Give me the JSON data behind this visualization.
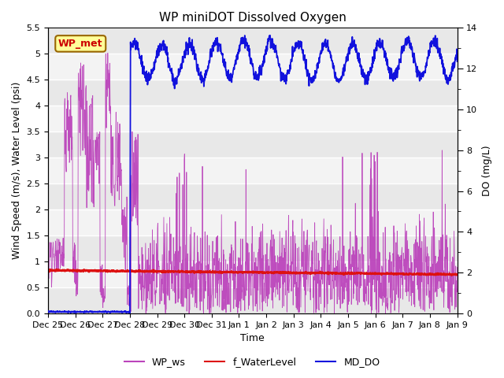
{
  "title": "WP miniDOT Dissolved Oxygen",
  "xlabel": "Time",
  "ylabel_left": "Wind Speed (m/s), Water Level (psi)",
  "ylabel_right": "DO (mg/L)",
  "ylim_left": [
    0.0,
    5.5
  ],
  "ylim_right": [
    0,
    14
  ],
  "xtick_labels": [
    "Dec 25",
    "Dec 26",
    "Dec 27",
    "Dec 28",
    "Dec 29",
    "Dec 30",
    "Dec 31",
    "Jan 1",
    "Jan 2",
    "Jan 3",
    "Jan 4",
    "Jan 5",
    "Jan 6",
    "Jan 7",
    "Jan 8",
    "Jan 9"
  ],
  "yticks_left": [
    0.0,
    0.5,
    1.0,
    1.5,
    2.0,
    2.5,
    3.0,
    3.5,
    4.0,
    4.5,
    5.0,
    5.5
  ],
  "yticks_right_major": [
    0,
    2,
    4,
    6,
    8,
    10,
    12,
    14
  ],
  "wp_ws_color": "#bb44bb",
  "f_waterlevel_color": "#dd1111",
  "md_do_color": "#1111dd",
  "bg_color": "#e8e8e8",
  "bg_band_color": "#d0d0d0",
  "annotation_text": "WP_met",
  "annotation_bg": "#ffff99",
  "annotation_border": "#cc0000",
  "legend_labels": [
    "WP_ws",
    "f_WaterLevel",
    "MD_DO"
  ],
  "legend_colors": [
    "#bb44bb",
    "#dd1111",
    "#1111dd"
  ],
  "title_fontsize": 11,
  "tick_fontsize": 8,
  "label_fontsize": 9
}
